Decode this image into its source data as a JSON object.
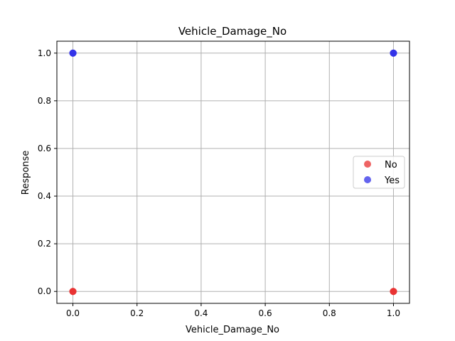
{
  "chart_data": {
    "type": "scatter",
    "title": "Vehicle_Damage_No",
    "xlabel": "Vehicle_Damage_No",
    "ylabel": "Response",
    "xlim": [
      -0.05,
      1.05
    ],
    "ylim": [
      -0.05,
      1.05
    ],
    "xticks": [
      0.0,
      0.2,
      0.4,
      0.6,
      0.8,
      1.0
    ],
    "yticks": [
      0.0,
      0.2,
      0.4,
      0.6,
      0.8,
      1.0
    ],
    "xtick_labels": [
      "0.0",
      "0.2",
      "0.4",
      "0.6",
      "0.8",
      "1.0"
    ],
    "ytick_labels": [
      "0.0",
      "0.2",
      "0.4",
      "0.6",
      "0.8",
      "1.0"
    ],
    "grid": true,
    "legend_position": "center-right",
    "series": [
      {
        "name": "No",
        "color": "#e83030",
        "points": [
          {
            "x": 0,
            "y": 0
          },
          {
            "x": 1,
            "y": 0
          }
        ]
      },
      {
        "name": "Yes",
        "color": "#3030e8",
        "points": [
          {
            "x": 0,
            "y": 1
          },
          {
            "x": 1,
            "y": 1
          }
        ]
      }
    ]
  }
}
